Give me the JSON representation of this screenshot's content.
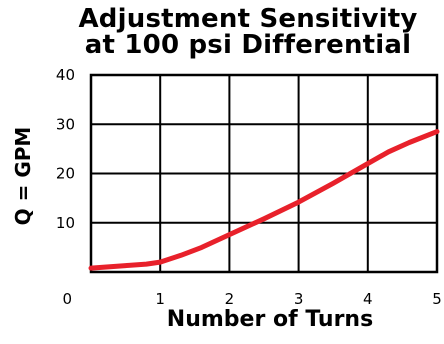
{
  "chart_data": {
    "type": "line",
    "title_lines": [
      "Adjustment Sensitivity",
      "at 100 psi Differential"
    ],
    "xlabel": "Number of Turns",
    "ylabel": "Q = GPM",
    "xlim": [
      0,
      5
    ],
    "ylim": [
      0,
      40
    ],
    "x_ticks": [
      1,
      2,
      3,
      4,
      5
    ],
    "x_tick_labels": [
      "1",
      "2",
      "3",
      "4",
      "5"
    ],
    "y_ticks": [
      10,
      20,
      30,
      40
    ],
    "y_tick_labels": [
      "10",
      "20",
      "30",
      "40"
    ],
    "origin_label": "0",
    "grid": true,
    "line_color": "#e8212b",
    "series": [
      {
        "x": [
          0,
          0.2,
          0.5,
          0.8,
          1.0,
          1.3,
          1.6,
          2.0,
          2.5,
          3.0,
          3.5,
          4.0,
          4.3,
          4.6,
          5.0
        ],
        "y": [
          0.8,
          1.0,
          1.3,
          1.6,
          2.0,
          3.4,
          5.0,
          7.6,
          10.8,
          14.2,
          18.0,
          22.0,
          24.4,
          26.3,
          28.5
        ]
      }
    ]
  }
}
